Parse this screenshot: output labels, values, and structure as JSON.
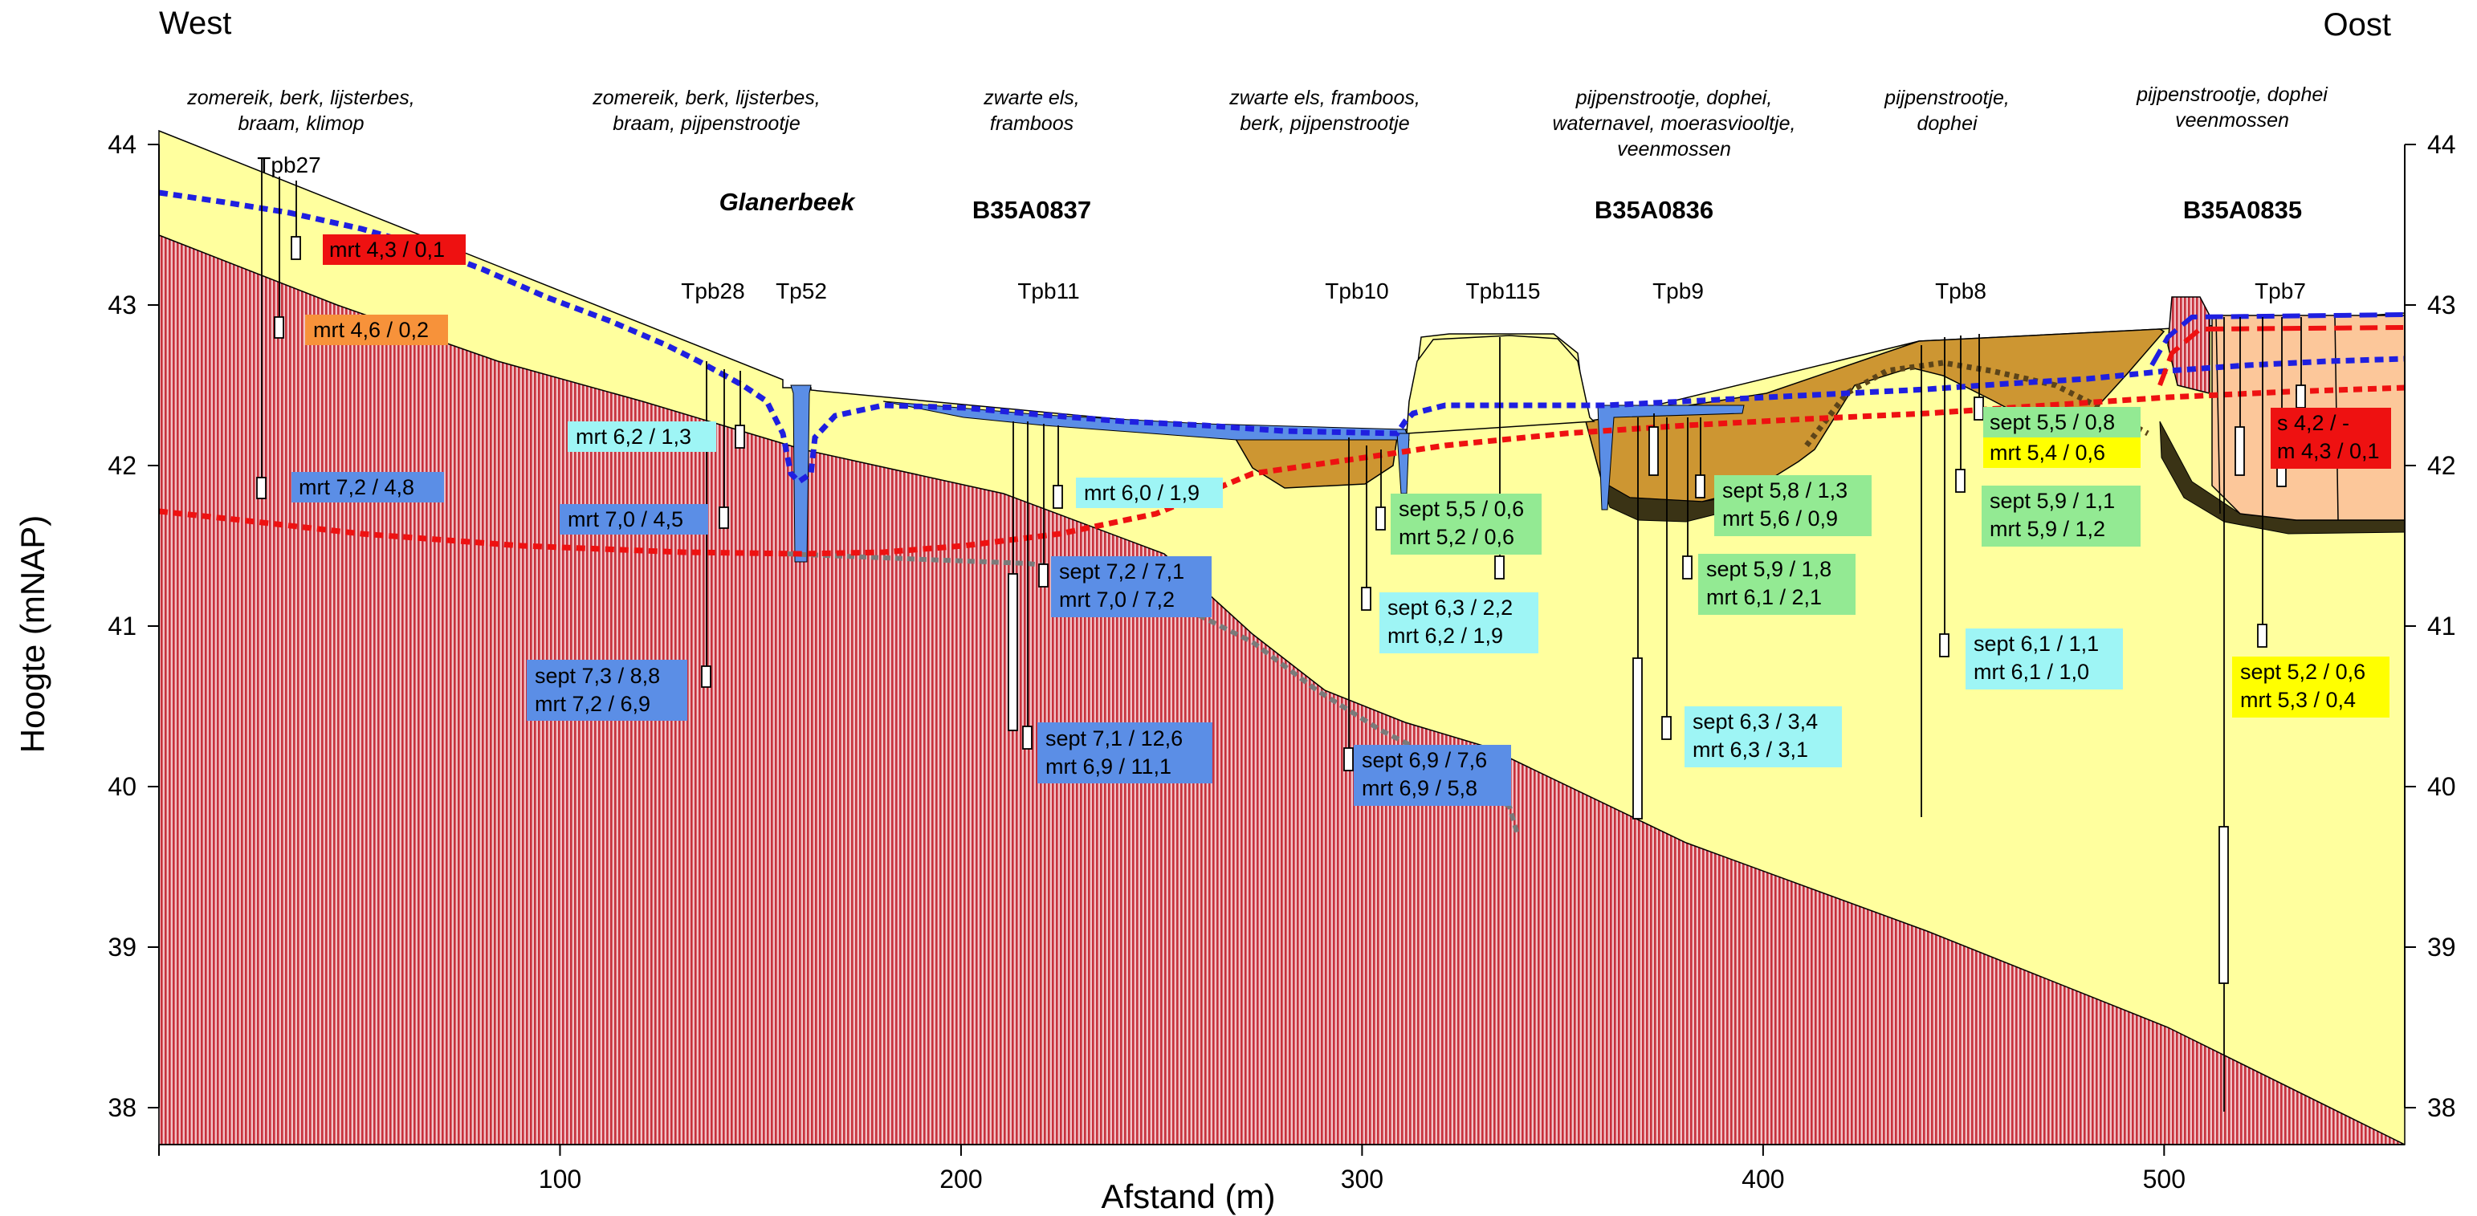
{
  "direction": {
    "west": "West",
    "east": "Oost"
  },
  "axes": {
    "xlabel": "Afstand (m)",
    "ylabel": "Hoogte (mNAP)",
    "xticks": [
      "100",
      "200",
      "300",
      "400",
      "500"
    ],
    "yticks": [
      "38",
      "39",
      "40",
      "41",
      "42",
      "43",
      "44"
    ],
    "xlim": [
      0,
      560
    ],
    "ylim": [
      37.75,
      44.1
    ]
  },
  "vegetation": [
    {
      "l1": "zomereik, berk, lijsterbes,",
      "l2": "braam, klimop",
      "l3": ""
    },
    {
      "l1": "zomereik, berk, lijsterbes,",
      "l2": "braam, pijpenstrootje",
      "l3": ""
    },
    {
      "l1": "zwarte els,",
      "l2": "framboos",
      "l3": ""
    },
    {
      "l1": "zwarte els, framboos,",
      "l2": "berk, pijpenstrootje",
      "l3": ""
    },
    {
      "l1": "pijpenstrootje, dophei,",
      "l2": "waternavel, moerasviooltje,",
      "l3": "veenmossen"
    },
    {
      "l1": "pijpenstrootje,",
      "l2": "dophei",
      "l3": ""
    },
    {
      "l1": "pijpenstrootje, dophei",
      "l2": "veenmossen",
      "l3": ""
    }
  ],
  "features": {
    "stream": "Glanerbeek",
    "b1": "B35A0837",
    "b2": "B35A0836",
    "b3": "B35A0835"
  },
  "wells": [
    "Tpb27",
    "Tpb28",
    "Tp52",
    "Tpb11",
    "Tpb10",
    "Tpb115",
    "Tpb9",
    "Tpb8",
    "Tpb7"
  ],
  "labels": [
    {
      "l1": "mrt 4,3 / 0,1",
      "l2": "",
      "color": "#ee1111"
    },
    {
      "l1": "mrt 4,6 / 0,2",
      "l2": "",
      "color": "#f7923a"
    },
    {
      "l1": "mrt 6,2 / 1,3",
      "l2": "",
      "color": "#9ef5f5"
    },
    {
      "l1": "mrt  7,2 / 4,8",
      "l2": "",
      "color": "#5b8ee6"
    },
    {
      "l1": "mrt 7,0 / 4,5",
      "l2": "",
      "color": "#5b8ee6"
    },
    {
      "l1": "sept 7,3 / 8,8",
      "l2": "mrt  7,2 / 6,9",
      "color": "#5b8ee6"
    },
    {
      "l1": "mrt 6,0 / 1,9",
      "l2": "",
      "color": "#9ef5f5"
    },
    {
      "l1": "sept 7,2 / 7,1",
      "l2": "mrt  7,0 / 7,2",
      "color": "#5b8ee6"
    },
    {
      "l1": "sept 7,1 / 12,6",
      "l2": "mrt  6,9 / 11,1",
      "color": "#5b8ee6"
    },
    {
      "l1": "sept 5,5 / 0,6",
      "l2": "mrt 5,2 / 0,6",
      "color": "#93ea93"
    },
    {
      "l1": "sept 6,3 / 2,2",
      "l2": "mrt  6,2 / 1,9",
      "color": "#9ef5f5"
    },
    {
      "l1": "sept 6,9 / 7,6",
      "l2": "mrt  6,9 / 5,8",
      "color": "#5b8ee6"
    },
    {
      "l1": "sept 5,8 / 1,3",
      "l2": "mrt  5,6 / 0,9",
      "color": "#93ea93"
    },
    {
      "l1": "sept 5,9 / 1,8",
      "l2": "mrt  6,1 / 2,1",
      "color": "#93ea93"
    },
    {
      "l1": "sept 6,3 / 3,4",
      "l2": "mrt  6,3 / 3,1",
      "color": "#9ef5f5"
    },
    {
      "l1": "sept 5,5 / 0,8",
      "l2": "",
      "color": "#93ea93"
    },
    {
      "l1": "mrt  5,4 / 0,6",
      "l2": "",
      "color": "#ffff00"
    },
    {
      "l1": "sept 5,9 / 1,1",
      "l2": "mrt  5,9 / 1,2",
      "color": "#93ea93"
    },
    {
      "l1": "sept 6,1 / 1,1",
      "l2": "mrt 6,1 / 1,0",
      "color": "#9ef5f5"
    },
    {
      "l1": "s 4,2 / -",
      "l2": "m 4,3 / 0,1",
      "color": "#ee1111"
    },
    {
      "l1": "sept 5,2 / 0,6",
      "l2": "mrt  5,3 / 0,4",
      "color": "#ffff00"
    }
  ],
  "colors": {
    "sand": "#ffff9e",
    "clay": "#c7313c",
    "peat": "#cd9632",
    "peatDark": "#3a3315",
    "water": "#5b8ee6",
    "fen": "#fcc79a",
    "winterLevel": "#1f1fe0",
    "summerLevel": "#ee1111",
    "boundary": "#7a7a7a"
  }
}
